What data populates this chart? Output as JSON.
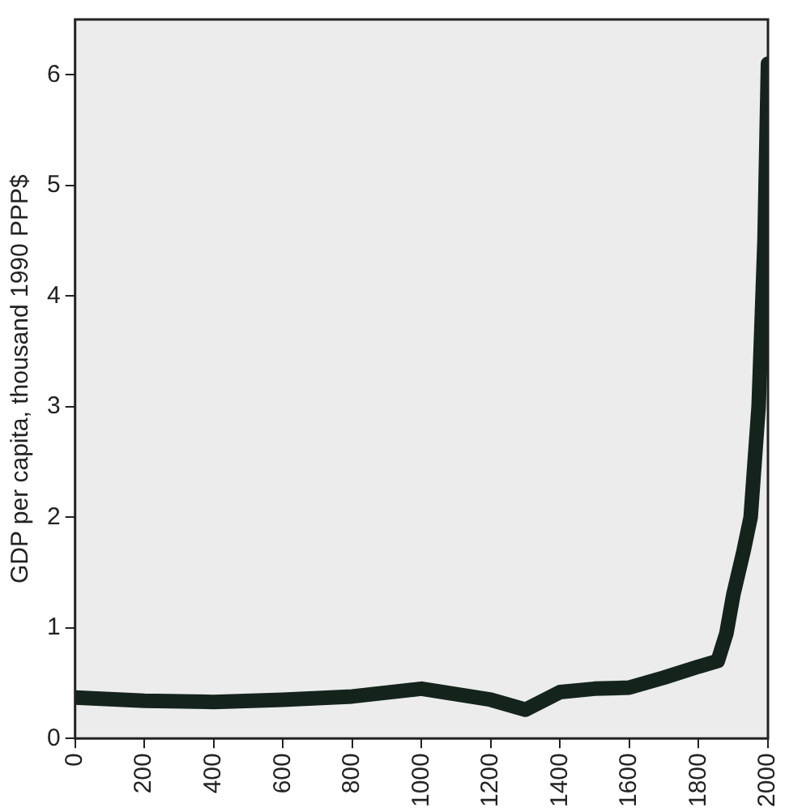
{
  "chart_data": {
    "type": "line",
    "ylabel": "GDP per capita, thousand 1990 PPP$",
    "x": [
      0,
      200,
      400,
      600,
      800,
      1000,
      1200,
      1300,
      1400,
      1500,
      1600,
      1700,
      1800,
      1855,
      1880,
      1900,
      1930,
      1950,
      1973,
      1990,
      2000
    ],
    "series": [
      {
        "color": "#14241c",
        "values": [
          0.37,
          0.34,
          0.33,
          0.35,
          0.38,
          0.45,
          0.35,
          0.26,
          0.42,
          0.45,
          0.46,
          0.55,
          0.65,
          0.7,
          0.95,
          1.3,
          1.7,
          2.0,
          3.0,
          4.5,
          6.1
        ]
      }
    ],
    "xlim": [
      0,
      2000
    ],
    "xticks": [
      0,
      200,
      400,
      600,
      800,
      1000,
      1200,
      1400,
      1600,
      1800,
      2000
    ],
    "ylim": [
      0,
      6.5
    ],
    "yticks": [
      0,
      1,
      2,
      3,
      4,
      5,
      6
    ],
    "grid": false,
    "legend": false,
    "marker": "none",
    "line_style": "solid"
  }
}
